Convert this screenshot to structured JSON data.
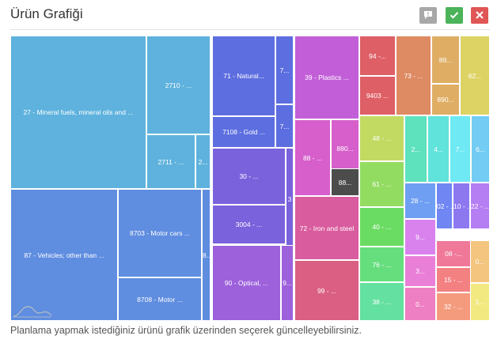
{
  "header": {
    "title": "Ürün Grafiği"
  },
  "toolbar": {
    "comment_icon": "comment-icon",
    "confirm_icon": "check-icon",
    "close_icon": "close-icon",
    "comment_color": "#a8a8a8",
    "confirm_color": "#4bb35a",
    "close_color": "#e05656"
  },
  "footer": {
    "text": "Planlama yapmak istediğiniz ürünü grafik üzerinden seçerek güncelleyebilirsiniz."
  },
  "chart_data": {
    "type": "treemap",
    "tiles": [
      {
        "label": "27 - Mineral fuels, mineral oils and ...",
        "color": "#5eb2dd"
      },
      {
        "label": "2710 - ...",
        "color": "#5eb2dd"
      },
      {
        "label": "2711 - ...",
        "color": "#5eb2dd"
      },
      {
        "label": "2...",
        "color": "#5eb2dd"
      },
      {
        "label": "87 - Vehicles; other than ...",
        "color": "#5f8de0"
      },
      {
        "label": "8703 - Motor cars ...",
        "color": "#5f8de0"
      },
      {
        "label": "8708 - Motor ...",
        "color": "#5f8de0"
      },
      {
        "label": "8...",
        "color": "#5f8de0"
      },
      {
        "label": "71 - Natural...",
        "color": "#5d6ee0"
      },
      {
        "label": "7...",
        "color": "#5d6ee0"
      },
      {
        "label": "7108 - Gold ...",
        "color": "#5d6ee0"
      },
      {
        "label": "7...",
        "color": "#5d6ee0"
      },
      {
        "label": "30 - ...",
        "color": "#7a62dc"
      },
      {
        "label": "3",
        "color": "#7a62dc"
      },
      {
        "label": "3004 - ...",
        "color": "#7a62dc"
      },
      {
        "label": "90 - Optical, ...",
        "color": "#9d61dc"
      },
      {
        "label": "9...",
        "color": "#9d61dc"
      },
      {
        "label": "39 - Plastics ...",
        "color": "#c25fd8"
      },
      {
        "label": "88 - ...",
        "color": "#d65fcb"
      },
      {
        "label": "880...",
        "color": "#d65fcb"
      },
      {
        "label": "88...",
        "color": "#4c4c4c"
      },
      {
        "label": "72 - Iron and steel",
        "color": "#d95c9e"
      },
      {
        "label": "99 - ...",
        "color": "#da5f82"
      },
      {
        "label": "94 -...",
        "color": "#de5f66"
      },
      {
        "label": "9403 ...",
        "color": "#de5f66"
      },
      {
        "label": "73 - ...",
        "color": "#de8a62"
      },
      {
        "label": "89...",
        "color": "#dfae64"
      },
      {
        "label": "890...",
        "color": "#dfae64"
      },
      {
        "label": "62...",
        "color": "#ddd364"
      },
      {
        "label": "48 - ...",
        "color": "#c2da62"
      },
      {
        "label": "61 - ...",
        "color": "#93dc62"
      },
      {
        "label": "40 - ...",
        "color": "#6bdc63"
      },
      {
        "label": "76 - ...",
        "color": "#66de7e"
      },
      {
        "label": "38 - ...",
        "color": "#64e0a0"
      },
      {
        "label": "2...",
        "color": "#5ee1bd"
      },
      {
        "label": "4...",
        "color": "#5fe3db"
      },
      {
        "label": "7...",
        "color": "#6fe9f3"
      },
      {
        "label": "6...",
        "color": "#72ccf3"
      },
      {
        "label": "28 - ...",
        "color": "#6f9ff3"
      },
      {
        "label": "02 - ...",
        "color": "#6f86f3"
      },
      {
        "label": "10 - ...",
        "color": "#8d78f0"
      },
      {
        "label": "22 - ...",
        "color": "#b57ef2"
      },
      {
        "label": "9...",
        "color": "#d982ee"
      },
      {
        "label": "3...",
        "color": "#ea7fd8"
      },
      {
        "label": "0...",
        "color": "#ee7fc2"
      },
      {
        "label": "08 -...",
        "color": "#f0799a"
      },
      {
        "label": "15 - ...",
        "color": "#f38182"
      },
      {
        "label": "32 - ...",
        "color": "#f49b7d"
      },
      {
        "label": "0...",
        "color": "#f3c57e"
      },
      {
        "label": "1...",
        "color": "#f2ea80"
      }
    ]
  }
}
